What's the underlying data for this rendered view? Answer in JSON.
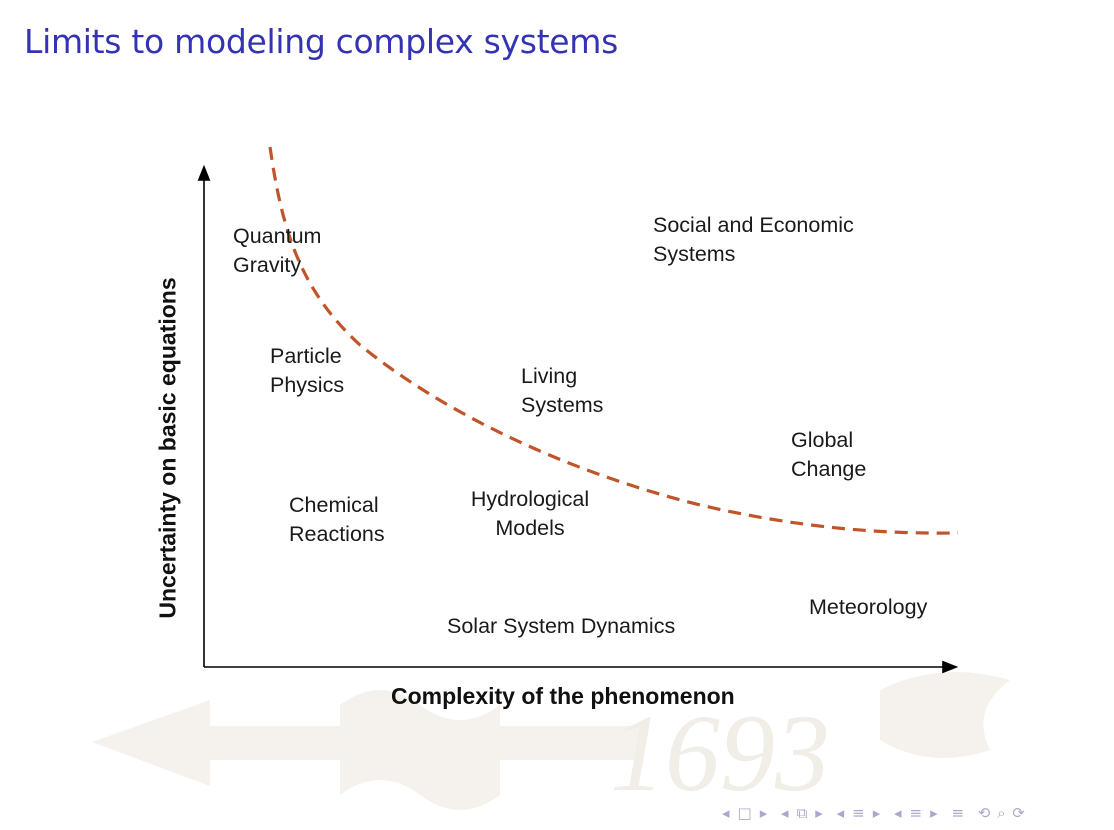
{
  "slide": {
    "title": "Limits to modeling complex systems"
  },
  "diagram": {
    "x_axis_label": "Complexity of the phenomenon",
    "y_axis_label": "Uncertainty on basic equations",
    "regions": [
      {
        "line1": "Quantum",
        "line2": "Gravity"
      },
      {
        "line1": "Particle",
        "line2": "Physics"
      },
      {
        "line1": "Chemical",
        "line2": "Reactions"
      },
      {
        "line1": "Social and Economic",
        "line2": "Systems"
      },
      {
        "line1": "Living",
        "line2": "Systems"
      },
      {
        "line1": "Global",
        "line2": "Change"
      },
      {
        "line1": "Hydrological",
        "line2": "Models"
      },
      {
        "line1": "Solar System Dynamics",
        "line2": ""
      },
      {
        "line1": "Meteorology",
        "line2": ""
      }
    ],
    "boundary_color": "#c0542a"
  },
  "watermark": {
    "text": "1693"
  },
  "navigation": {
    "frame_prev": "◂",
    "frame_icon": "□",
    "frame_next": "▸",
    "subsection_prev": "◂",
    "subsection_icon": "⧉",
    "subsection_next": "▸",
    "section_prev": "◂",
    "section_icon": "≡",
    "section_next": "▸",
    "doc_prev": "◂",
    "doc_icon": "≡",
    "doc_next": "▸",
    "appendix_icon": "≡",
    "search_icons": "⟲ ⌕ ⟳"
  }
}
